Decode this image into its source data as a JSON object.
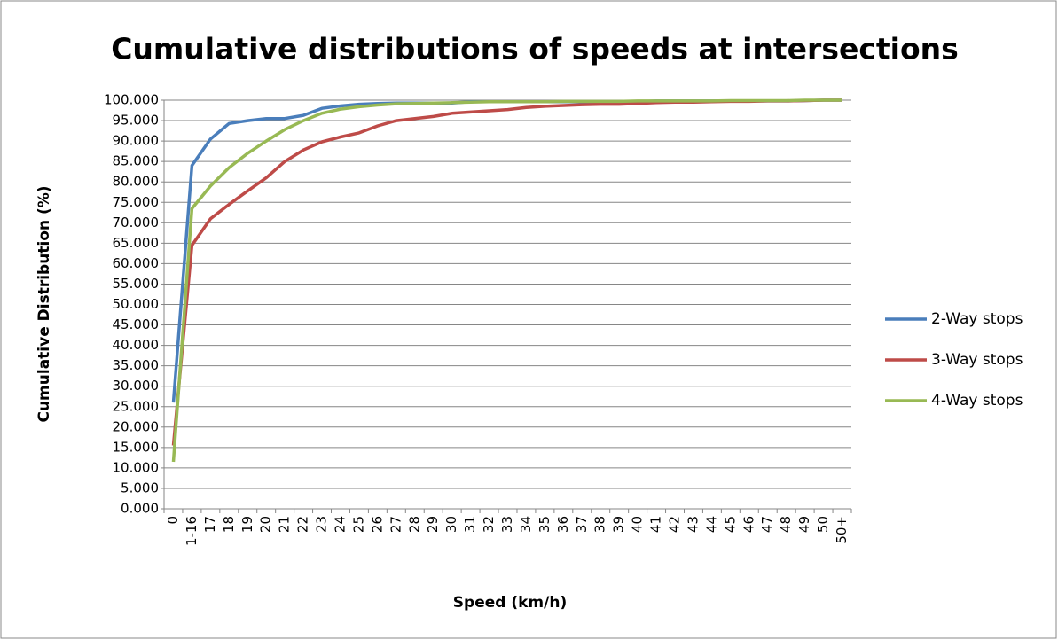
{
  "chart_data": {
    "type": "line",
    "title": "Cumulative distributions of speeds at intersections",
    "x_label": "Speed (km/h)",
    "y_label": "Cumulative Distribution (%)",
    "categories": [
      "0",
      "1-16",
      "17",
      "18",
      "19",
      "20",
      "21",
      "22",
      "23",
      "24",
      "25",
      "26",
      "27",
      "28",
      "29",
      "30",
      "31",
      "32",
      "33",
      "34",
      "35",
      "36",
      "37",
      "38",
      "39",
      "40",
      "41",
      "42",
      "43",
      "44",
      "45",
      "46",
      "47",
      "48",
      "49",
      "50",
      "50+"
    ],
    "series": [
      {
        "name": "2-Way stops",
        "color": "#4a7ebb",
        "values": [
          26,
          84,
          90.5,
          94.3,
          95,
          95.5,
          95.5,
          96.3,
          98,
          98.6,
          99,
          99.2,
          99.3,
          99.3,
          99.3,
          99.3,
          99.6,
          99.6,
          99.6,
          99.6,
          99.6,
          99.6,
          99.6,
          99.6,
          99.6,
          99.6,
          99.8,
          99.8,
          99.8,
          99.8,
          99.8,
          99.8,
          99.8,
          99.8,
          99.9,
          100,
          100
        ]
      },
      {
        "name": "3-Way stops",
        "color": "#be4b48",
        "values": [
          15.5,
          64.5,
          71,
          74.5,
          77.8,
          81,
          85,
          87.8,
          89.8,
          91,
          92,
          93.7,
          95,
          95.5,
          96,
          96.8,
          97.1,
          97.4,
          97.7,
          98.2,
          98.5,
          98.7,
          98.9,
          99,
          99,
          99.2,
          99.4,
          99.5,
          99.5,
          99.6,
          99.7,
          99.7,
          99.8,
          99.8,
          99.9,
          100,
          100
        ]
      },
      {
        "name": "4-Way stops",
        "color": "#98b954",
        "values": [
          11.5,
          73.5,
          79,
          83.5,
          87,
          90,
          92.8,
          95,
          96.8,
          97.8,
          98.4,
          98.8,
          99.1,
          99.2,
          99.3,
          99.4,
          99.5,
          99.6,
          99.6,
          99.6,
          99.6,
          99.7,
          99.7,
          99.7,
          99.7,
          99.8,
          99.8,
          99.8,
          99.8,
          99.8,
          99.9,
          99.9,
          99.9,
          99.9,
          100,
          100,
          100
        ]
      }
    ],
    "ylim": [
      0,
      100
    ],
    "yticks": [
      {
        "value": 0,
        "label": "0.000"
      },
      {
        "value": 5,
        "label": "5.000"
      },
      {
        "value": 10,
        "label": "10.000"
      },
      {
        "value": 15,
        "label": "15.000"
      },
      {
        "value": 20,
        "label": "20.000"
      },
      {
        "value": 25,
        "label": "25.000"
      },
      {
        "value": 30,
        "label": "30.000"
      },
      {
        "value": 35,
        "label": "35.000"
      },
      {
        "value": 40,
        "label": "40.000"
      },
      {
        "value": 45,
        "label": "45.000"
      },
      {
        "value": 50,
        "label": "50.000"
      },
      {
        "value": 55,
        "label": "55.000"
      },
      {
        "value": 60,
        "label": "60.000"
      },
      {
        "value": 65,
        "label": "65.000"
      },
      {
        "value": 70,
        "label": "70.000"
      },
      {
        "value": 75,
        "label": "75.000"
      },
      {
        "value": 80,
        "label": "80.000"
      },
      {
        "value": 85,
        "label": "85.000"
      },
      {
        "value": 90,
        "label": "90.000"
      },
      {
        "value": 95,
        "label": "95.000"
      },
      {
        "value": 100,
        "label": "100.000"
      }
    ],
    "grid": true,
    "legend": "right"
  }
}
